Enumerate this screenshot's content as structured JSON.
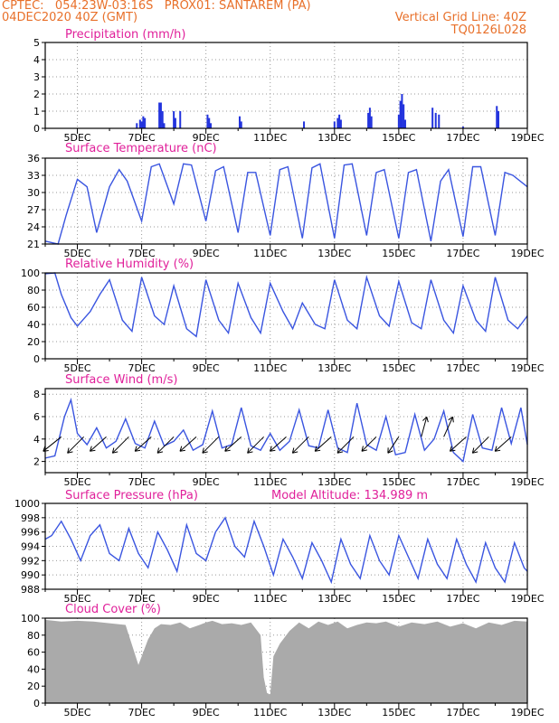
{
  "header": {
    "line1_left": "CPTEC:   054:23W-03:16S   PROX01: SANTAREM (PA)",
    "line2_left": "04DEC2020 40Z (GMT)",
    "line2_right": "Vertical Grid Line: 40Z",
    "line3_right": "TQ0126L028"
  },
  "colors": {
    "header_text": "#e8702a",
    "panel_title": "#e0209a",
    "series_line": "#3a55e0",
    "precip_bar": "#2233dd",
    "cloud_fill": "#aaaaaa",
    "wind_vector": "#000000"
  },
  "chart_data": [
    {
      "type": "bar",
      "title": "Precipitation (mm/h)",
      "x_tick_labels": [
        "5DEC",
        "7DEC",
        "9DEC",
        "11DEC",
        "13DEC",
        "15DEC",
        "17DEC",
        "19DEC"
      ],
      "ylim": [
        0,
        5
      ],
      "y_ticks": [
        0,
        1,
        2,
        3,
        4,
        5
      ],
      "grid": true,
      "bars": [
        {
          "x": 6.85,
          "v": 0.3
        },
        {
          "x": 6.95,
          "v": 0.5
        },
        {
          "x": 7.0,
          "v": 0.4
        },
        {
          "x": 7.05,
          "v": 0.7
        },
        {
          "x": 7.1,
          "v": 0.6
        },
        {
          "x": 7.55,
          "v": 1.5
        },
        {
          "x": 7.6,
          "v": 1.5
        },
        {
          "x": 7.65,
          "v": 1.0
        },
        {
          "x": 7.7,
          "v": 0.3
        },
        {
          "x": 8.0,
          "v": 1.0
        },
        {
          "x": 8.05,
          "v": 0.6
        },
        {
          "x": 8.2,
          "v": 1.0
        },
        {
          "x": 9.05,
          "v": 0.8
        },
        {
          "x": 9.1,
          "v": 0.6
        },
        {
          "x": 9.15,
          "v": 0.3
        },
        {
          "x": 10.05,
          "v": 0.7
        },
        {
          "x": 10.1,
          "v": 0.4
        },
        {
          "x": 12.05,
          "v": 0.4
        },
        {
          "x": 13.0,
          "v": 0.4
        },
        {
          "x": 13.1,
          "v": 0.6
        },
        {
          "x": 13.15,
          "v": 0.8
        },
        {
          "x": 13.2,
          "v": 0.5
        },
        {
          "x": 14.05,
          "v": 0.9
        },
        {
          "x": 14.1,
          "v": 1.2
        },
        {
          "x": 14.15,
          "v": 0.7
        },
        {
          "x": 15.0,
          "v": 0.8
        },
        {
          "x": 15.05,
          "v": 1.6
        },
        {
          "x": 15.1,
          "v": 2.0
        },
        {
          "x": 15.15,
          "v": 1.4
        },
        {
          "x": 15.2,
          "v": 0.5
        },
        {
          "x": 16.05,
          "v": 1.2
        },
        {
          "x": 16.15,
          "v": 0.9
        },
        {
          "x": 16.25,
          "v": 0.8
        },
        {
          "x": 17.0,
          "v": 0.1
        },
        {
          "x": 18.05,
          "v": 1.3
        },
        {
          "x": 18.1,
          "v": 1.0
        }
      ]
    },
    {
      "type": "line",
      "title": "Surface Temperature (nC)",
      "x_tick_labels": [
        "5DEC",
        "7DEC",
        "9DEC",
        "11DEC",
        "13DEC",
        "15DEC",
        "17DEC",
        "19DEC"
      ],
      "ylim": [
        21,
        36
      ],
      "y_ticks": [
        21,
        24,
        27,
        30,
        33,
        36
      ],
      "grid": true,
      "x": [
        4.0,
        4.4,
        4.65,
        5.0,
        5.3,
        5.6,
        6.0,
        6.3,
        6.55,
        7.0,
        7.3,
        7.55,
        8.0,
        8.3,
        8.55,
        9.0,
        9.3,
        9.55,
        10.0,
        10.3,
        10.55,
        11.0,
        11.3,
        11.55,
        12.0,
        12.3,
        12.55,
        13.0,
        13.3,
        13.55,
        14.0,
        14.3,
        14.55,
        15.0,
        15.3,
        15.55,
        16.0,
        16.3,
        16.55,
        17.0,
        17.3,
        17.55,
        18.0,
        18.3,
        18.55,
        19.0
      ],
      "y": [
        21.5,
        21.0,
        26.0,
        32.3,
        31.0,
        23.0,
        31.0,
        34.0,
        32.0,
        25.0,
        34.5,
        35.0,
        28.0,
        35.0,
        34.8,
        25.0,
        33.8,
        34.5,
        23.0,
        33.5,
        33.5,
        22.5,
        34.0,
        34.5,
        22.0,
        34.3,
        35.0,
        22.0,
        34.8,
        35.0,
        22.5,
        33.5,
        34.0,
        22.0,
        33.5,
        34.0,
        21.5,
        32.0,
        34.0,
        22.3,
        34.5,
        34.5,
        22.5,
        33.5,
        33.0,
        31.0
      ]
    },
    {
      "type": "line",
      "title": "Relative Humidity (%)",
      "x_tick_labels": [
        "5DEC",
        "7DEC",
        "9DEC",
        "11DEC",
        "13DEC",
        "15DEC",
        "17DEC",
        "19DEC"
      ],
      "ylim": [
        0,
        100
      ],
      "y_ticks": [
        0,
        20,
        40,
        60,
        80,
        100
      ],
      "grid": true,
      "x": [
        4.0,
        4.3,
        4.5,
        4.8,
        5.0,
        5.4,
        5.7,
        6.0,
        6.4,
        6.7,
        7.0,
        7.4,
        7.7,
        8.0,
        8.4,
        8.7,
        9.0,
        9.4,
        9.7,
        10.0,
        10.4,
        10.7,
        11.0,
        11.4,
        11.7,
        12.0,
        12.4,
        12.7,
        13.0,
        13.4,
        13.7,
        14.0,
        14.4,
        14.7,
        15.0,
        15.4,
        15.7,
        16.0,
        16.4,
        16.7,
        17.0,
        17.4,
        17.7,
        18.0,
        18.4,
        18.7,
        19.0
      ],
      "y": [
        99,
        100,
        75,
        48,
        38,
        55,
        75,
        92,
        45,
        32,
        95,
        50,
        40,
        85,
        35,
        26,
        92,
        45,
        30,
        88,
        48,
        30,
        88,
        55,
        35,
        65,
        40,
        35,
        92,
        45,
        35,
        95,
        50,
        38,
        90,
        42,
        35,
        92,
        45,
        30,
        85,
        45,
        32,
        95,
        45,
        35,
        50
      ]
    },
    {
      "type": "line",
      "title": "Surface Wind (m/s)",
      "x_tick_labels": [
        "5DEC",
        "7DEC",
        "9DEC",
        "11DEC",
        "13DEC",
        "15DEC",
        "17DEC",
        "19DEC"
      ],
      "ylim": [
        1,
        8.5
      ],
      "y_ticks": [
        2,
        4,
        6,
        8
      ],
      "grid": true,
      "x": [
        4.0,
        4.3,
        4.6,
        4.8,
        5.0,
        5.3,
        5.6,
        5.9,
        6.2,
        6.5,
        6.8,
        7.1,
        7.4,
        7.7,
        8.0,
        8.3,
        8.6,
        8.9,
        9.2,
        9.5,
        9.8,
        10.1,
        10.4,
        10.7,
        11.0,
        11.3,
        11.6,
        11.9,
        12.2,
        12.5,
        12.8,
        13.1,
        13.4,
        13.7,
        14.0,
        14.3,
        14.6,
        14.9,
        15.2,
        15.5,
        15.8,
        16.1,
        16.4,
        16.7,
        17.0,
        17.3,
        17.6,
        17.9,
        18.2,
        18.5,
        18.8,
        19.0
      ],
      "y": [
        2.3,
        2.5,
        6.0,
        7.5,
        4.5,
        3.5,
        5.0,
        3.2,
        3.8,
        5.8,
        3.6,
        3.2,
        5.6,
        3.4,
        3.8,
        4.8,
        3.0,
        3.5,
        6.5,
        3.2,
        3.5,
        6.8,
        3.4,
        3.0,
        4.5,
        3.0,
        3.8,
        6.6,
        3.4,
        3.2,
        6.6,
        3.2,
        2.8,
        7.2,
        3.5,
        3.0,
        6.0,
        2.6,
        2.8,
        6.2,
        3.0,
        4.0,
        6.5,
        2.8,
        2.0,
        6.2,
        3.2,
        3.0,
        6.8,
        3.6,
        6.8,
        3.5
      ],
      "vectors": [
        {
          "x": 4.5,
          "dx": -0.5,
          "dy": -0.4
        },
        {
          "x": 5.2,
          "dx": -0.45,
          "dy": -0.45
        },
        {
          "x": 5.9,
          "dx": -0.45,
          "dy": -0.4
        },
        {
          "x": 6.6,
          "dx": -0.45,
          "dy": -0.45
        },
        {
          "x": 7.3,
          "dx": -0.45,
          "dy": -0.4
        },
        {
          "x": 8.0,
          "dx": -0.45,
          "dy": -0.45
        },
        {
          "x": 8.7,
          "dx": -0.45,
          "dy": -0.4
        },
        {
          "x": 9.4,
          "dx": -0.45,
          "dy": -0.45
        },
        {
          "x": 10.1,
          "dx": -0.45,
          "dy": -0.4
        },
        {
          "x": 10.8,
          "dx": -0.45,
          "dy": -0.45
        },
        {
          "x": 11.5,
          "dx": -0.45,
          "dy": -0.4
        },
        {
          "x": 12.2,
          "dx": -0.45,
          "dy": -0.45
        },
        {
          "x": 12.9,
          "dx": -0.45,
          "dy": -0.4
        },
        {
          "x": 13.6,
          "dx": -0.45,
          "dy": -0.45
        },
        {
          "x": 14.3,
          "dx": -0.4,
          "dy": -0.4
        },
        {
          "x": 15.0,
          "dx": -0.3,
          "dy": -0.45
        },
        {
          "x": 15.7,
          "dx": 0.15,
          "dy": 0.55
        },
        {
          "x": 16.4,
          "dx": 0.25,
          "dy": 0.55
        },
        {
          "x": 17.1,
          "dx": -0.45,
          "dy": -0.4
        },
        {
          "x": 17.8,
          "dx": -0.45,
          "dy": -0.45
        },
        {
          "x": 18.5,
          "dx": -0.45,
          "dy": -0.4
        }
      ]
    },
    {
      "type": "line",
      "title": "Surface Pressure (hPa)",
      "annotation": "Model Altitude: 134.989  m",
      "x_tick_labels": [
        "5DEC",
        "7DEC",
        "9DEC",
        "11DEC",
        "13DEC",
        "15DEC",
        "17DEC",
        "19DEC"
      ],
      "ylim": [
        988,
        1000
      ],
      "y_ticks": [
        988,
        990,
        992,
        994,
        996,
        998,
        1000
      ],
      "grid": true,
      "x": [
        4.0,
        4.2,
        4.5,
        4.8,
        5.1,
        5.4,
        5.7,
        6.0,
        6.3,
        6.6,
        6.9,
        7.2,
        7.5,
        7.8,
        8.1,
        8.4,
        8.7,
        9.0,
        9.3,
        9.6,
        9.9,
        10.2,
        10.5,
        10.8,
        11.1,
        11.4,
        11.7,
        12.0,
        12.3,
        12.6,
        12.9,
        13.2,
        13.5,
        13.8,
        14.1,
        14.4,
        14.7,
        15.0,
        15.3,
        15.6,
        15.9,
        16.2,
        16.5,
        16.8,
        17.1,
        17.4,
        17.7,
        18.0,
        18.3,
        18.6,
        18.9,
        19.0
      ],
      "y": [
        995.0,
        995.5,
        997.5,
        995.0,
        992.0,
        995.5,
        997.0,
        993.0,
        992.0,
        996.5,
        993.0,
        991.0,
        996.0,
        993.5,
        990.5,
        997.0,
        993.0,
        992.0,
        996.0,
        998.0,
        994.0,
        992.5,
        997.5,
        994.0,
        990.0,
        995.0,
        992.5,
        989.5,
        994.5,
        992.0,
        989.0,
        995.0,
        991.5,
        989.5,
        995.5,
        992.0,
        990.0,
        995.5,
        992.5,
        989.5,
        995.0,
        991.5,
        989.5,
        995.0,
        991.5,
        989.0,
        994.5,
        991.0,
        989.0,
        994.5,
        991.0,
        990.5
      ]
    },
    {
      "type": "area",
      "title": "Cloud Cover (%)",
      "x_tick_labels": [
        "5DEC",
        "7DEC",
        "9DEC",
        "11DEC",
        "13DEC",
        "15DEC",
        "17DEC",
        "19DEC"
      ],
      "ylim": [
        0,
        100
      ],
      "y_ticks": [
        0,
        20,
        40,
        60,
        80,
        100
      ],
      "grid": true,
      "x": [
        4.0,
        4.5,
        5.0,
        5.5,
        6.0,
        6.5,
        6.9,
        7.2,
        7.4,
        7.6,
        7.9,
        8.2,
        8.5,
        8.8,
        9.0,
        9.2,
        9.5,
        9.8,
        10.1,
        10.4,
        10.7,
        10.8,
        10.9,
        11.0,
        11.1,
        11.3,
        11.6,
        11.9,
        12.2,
        12.5,
        12.8,
        13.1,
        13.4,
        13.7,
        14.0,
        14.3,
        14.6,
        15.0,
        15.4,
        15.8,
        16.2,
        16.6,
        17.0,
        17.4,
        17.8,
        18.2,
        18.6,
        19.0
      ],
      "y": [
        98,
        96,
        97,
        96,
        94,
        92,
        45,
        75,
        88,
        93,
        92,
        95,
        88,
        92,
        95,
        97,
        93,
        94,
        92,
        95,
        80,
        30,
        12,
        10,
        55,
        70,
        85,
        95,
        88,
        96,
        92,
        96,
        88,
        92,
        95,
        94,
        96,
        90,
        95,
        93,
        96,
        90,
        94,
        88,
        95,
        92,
        97,
        96
      ]
    }
  ]
}
